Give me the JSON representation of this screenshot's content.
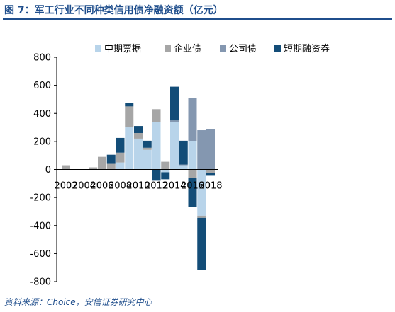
{
  "title": "图 7：军工行业不同种类信用债净融资额（亿元）",
  "source": "资料来源：Choice，安信证券研究中心",
  "colors": {
    "title": "#1f4e8c",
    "中期票据": "#b8d4ea",
    "企业债": "#a6a6a6",
    "公司债": "#8497b0",
    "短期融资券": "#134d78"
  },
  "chart_data": {
    "type": "bar",
    "stacked": true,
    "categories": [
      "2002",
      "2003",
      "2004",
      "2005",
      "2006",
      "2007",
      "2008",
      "2009",
      "2010",
      "2011",
      "2012",
      "2013",
      "2014",
      "2015",
      "2016",
      "2017",
      "2018"
    ],
    "x_tick_labels": [
      "2002",
      "2004",
      "2006",
      "2008",
      "2010",
      "2012",
      "2014",
      "2016",
      "2018"
    ],
    "ylim": [
      -800,
      800
    ],
    "y_ticks": [
      -800,
      -600,
      -400,
      -200,
      0,
      200,
      400,
      600,
      800
    ],
    "legend_position": "top",
    "grid": false,
    "series": [
      {
        "name": "中期票据",
        "values": [
          0,
          0,
          0,
          0,
          0,
          0,
          50,
          300,
          220,
          140,
          340,
          -20,
          340,
          30,
          200,
          -330,
          0
        ]
      },
      {
        "name": "企业债",
        "values": [
          30,
          0,
          0,
          15,
          90,
          40,
          70,
          150,
          40,
          15,
          90,
          55,
          0,
          0,
          -60,
          -15,
          -25
        ]
      },
      {
        "name": "公司债",
        "values": [
          0,
          0,
          0,
          0,
          0,
          0,
          0,
          0,
          0,
          0,
          0,
          0,
          10,
          5,
          310,
          280,
          290
        ]
      },
      {
        "name": "短期融资券",
        "values": [
          0,
          0,
          0,
          0,
          0,
          65,
          105,
          25,
          50,
          50,
          -80,
          -50,
          240,
          170,
          -210,
          -370,
          -20
        ]
      }
    ]
  }
}
